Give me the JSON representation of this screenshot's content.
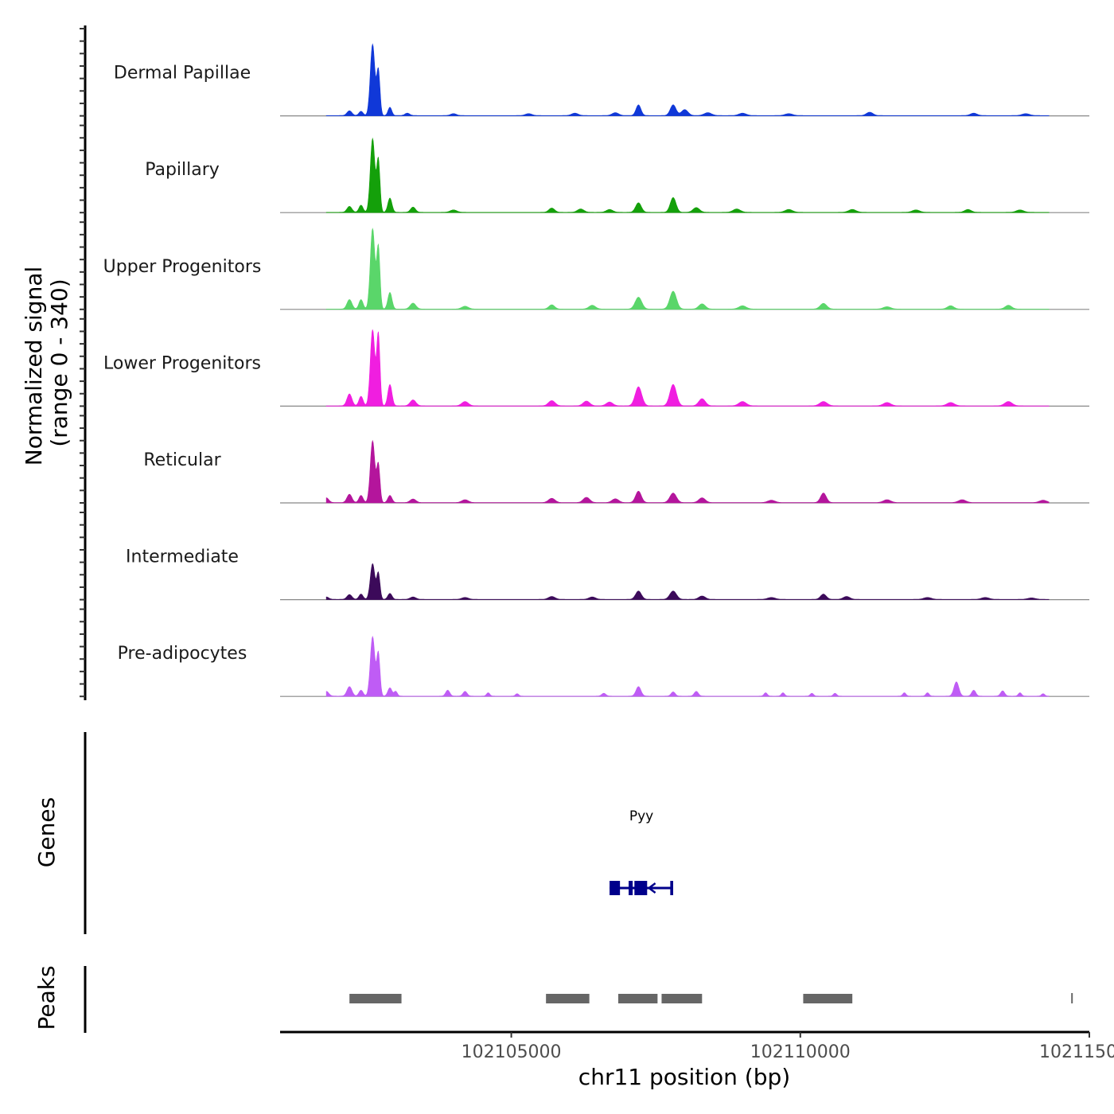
{
  "chart_data": {
    "type": "area",
    "title": "",
    "ylabel": "Normalized signal\n(range 0 - 340)",
    "ylabel_lines": [
      "Normalized signal",
      "(range 0 - 340)"
    ],
    "y_range": [
      0,
      340
    ],
    "xlabel": "chr11 position (bp)",
    "xlim": [
      102101000,
      102115000
    ],
    "x_ticks": [
      102105000,
      102110000,
      102115000
    ],
    "x_tick_labels": [
      "102105000",
      "102110000",
      "102115000"
    ],
    "series": [
      {
        "name": "Dermal Papillae",
        "color": "#1038d8",
        "peaks": [
          [
            102102200,
            20,
            60
          ],
          [
            102102400,
            18,
            50
          ],
          [
            102102600,
            300,
            55
          ],
          [
            102102700,
            190,
            40
          ],
          [
            102102900,
            35,
            45
          ],
          [
            102103200,
            10,
            60
          ],
          [
            102104000,
            8,
            70
          ],
          [
            102105300,
            8,
            80
          ],
          [
            102106100,
            10,
            80
          ],
          [
            102106800,
            12,
            80
          ],
          [
            102107200,
            45,
            60
          ],
          [
            102107800,
            45,
            70
          ],
          [
            102108000,
            25,
            80
          ],
          [
            102108400,
            12,
            90
          ],
          [
            102109000,
            10,
            90
          ],
          [
            102109800,
            8,
            90
          ],
          [
            102111200,
            14,
            80
          ],
          [
            102113000,
            10,
            80
          ],
          [
            102113900,
            8,
            90
          ]
        ]
      },
      {
        "name": "Papillary",
        "color": "#14a00a",
        "peaks": [
          [
            102102200,
            25,
            60
          ],
          [
            102102400,
            30,
            50
          ],
          [
            102102600,
            310,
            55
          ],
          [
            102102700,
            220,
            40
          ],
          [
            102102900,
            60,
            50
          ],
          [
            102103300,
            22,
            60
          ],
          [
            102104000,
            10,
            80
          ],
          [
            102105700,
            18,
            70
          ],
          [
            102106200,
            14,
            80
          ],
          [
            102106700,
            12,
            80
          ],
          [
            102107200,
            40,
            70
          ],
          [
            102107800,
            62,
            70
          ],
          [
            102108200,
            20,
            80
          ],
          [
            102108900,
            14,
            90
          ],
          [
            102109800,
            12,
            90
          ],
          [
            102110900,
            12,
            90
          ],
          [
            102112000,
            10,
            90
          ],
          [
            102112900,
            12,
            80
          ],
          [
            102113800,
            10,
            90
          ]
        ]
      },
      {
        "name": "Upper Progenitors",
        "color": "#5ad66a",
        "peaks": [
          [
            102102200,
            40,
            60
          ],
          [
            102102400,
            40,
            50
          ],
          [
            102102600,
            340,
            55
          ],
          [
            102102700,
            260,
            40
          ],
          [
            102102900,
            70,
            50
          ],
          [
            102103300,
            25,
            70
          ],
          [
            102104200,
            12,
            80
          ],
          [
            102105700,
            18,
            70
          ],
          [
            102106400,
            16,
            80
          ],
          [
            102107200,
            50,
            80
          ],
          [
            102107800,
            75,
            80
          ],
          [
            102108300,
            22,
            80
          ],
          [
            102109000,
            14,
            90
          ],
          [
            102110400,
            24,
            80
          ],
          [
            102111500,
            10,
            90
          ],
          [
            102112600,
            14,
            80
          ],
          [
            102113600,
            16,
            80
          ]
        ]
      },
      {
        "name": "Lower Progenitors",
        "color": "#f01ee0",
        "peaks": [
          [
            102102200,
            50,
            60
          ],
          [
            102102400,
            40,
            50
          ],
          [
            102102600,
            320,
            55
          ],
          [
            102102700,
            300,
            40
          ],
          [
            102102900,
            90,
            50
          ],
          [
            102103300,
            25,
            70
          ],
          [
            102104200,
            18,
            80
          ],
          [
            102105700,
            22,
            80
          ],
          [
            102106300,
            20,
            80
          ],
          [
            102106700,
            16,
            80
          ],
          [
            102107200,
            80,
            80
          ],
          [
            102107800,
            90,
            80
          ],
          [
            102108300,
            30,
            80
          ],
          [
            102109000,
            18,
            90
          ],
          [
            102110400,
            18,
            90
          ],
          [
            102111500,
            14,
            90
          ],
          [
            102112600,
            14,
            90
          ],
          [
            102113600,
            18,
            90
          ]
        ]
      },
      {
        "name": "Reticular",
        "color": "#b4159c",
        "peaks": [
          [
            102101800,
            20,
            60
          ],
          [
            102102200,
            35,
            60
          ],
          [
            102102400,
            30,
            50
          ],
          [
            102102600,
            260,
            55
          ],
          [
            102102700,
            160,
            40
          ],
          [
            102102900,
            30,
            50
          ],
          [
            102103300,
            15,
            70
          ],
          [
            102104200,
            12,
            80
          ],
          [
            102105700,
            18,
            80
          ],
          [
            102106300,
            22,
            80
          ],
          [
            102106800,
            16,
            80
          ],
          [
            102107200,
            48,
            70
          ],
          [
            102107800,
            40,
            80
          ],
          [
            102108300,
            20,
            80
          ],
          [
            102109500,
            10,
            90
          ],
          [
            102110400,
            40,
            70
          ],
          [
            102111500,
            12,
            90
          ],
          [
            102112800,
            12,
            90
          ],
          [
            102114200,
            10,
            90
          ]
        ]
      },
      {
        "name": "Intermediate",
        "color": "#3c0a5a",
        "peaks": [
          [
            102101800,
            10,
            60
          ],
          [
            102102200,
            20,
            60
          ],
          [
            102102400,
            22,
            50
          ],
          [
            102102600,
            150,
            55
          ],
          [
            102102700,
            110,
            40
          ],
          [
            102102900,
            25,
            50
          ],
          [
            102103300,
            10,
            70
          ],
          [
            102104200,
            8,
            80
          ],
          [
            102105700,
            12,
            80
          ],
          [
            102106400,
            10,
            80
          ],
          [
            102107200,
            35,
            70
          ],
          [
            102107800,
            35,
            80
          ],
          [
            102108300,
            14,
            80
          ],
          [
            102109500,
            8,
            90
          ],
          [
            102110400,
            22,
            70
          ],
          [
            102110800,
            12,
            80
          ],
          [
            102112200,
            8,
            90
          ],
          [
            102113200,
            8,
            90
          ],
          [
            102114000,
            6,
            90
          ]
        ]
      },
      {
        "name": "Pre-adipocytes",
        "color": "#bf5cf5",
        "peaks": [
          [
            102101800,
            20,
            60
          ],
          [
            102102200,
            40,
            60
          ],
          [
            102102400,
            25,
            50
          ],
          [
            102102600,
            250,
            55
          ],
          [
            102102700,
            180,
            40
          ],
          [
            102102900,
            35,
            50
          ],
          [
            102103000,
            20,
            40
          ],
          [
            102103900,
            25,
            50
          ],
          [
            102104200,
            20,
            50
          ],
          [
            102104600,
            14,
            40
          ],
          [
            102105100,
            10,
            40
          ],
          [
            102106600,
            12,
            50
          ],
          [
            102107200,
            40,
            60
          ],
          [
            102107800,
            18,
            50
          ],
          [
            102108200,
            20,
            50
          ],
          [
            102109400,
            14,
            40
          ],
          [
            102109700,
            14,
            40
          ],
          [
            102110200,
            12,
            40
          ],
          [
            102110600,
            12,
            40
          ],
          [
            102111800,
            14,
            40
          ],
          [
            102112200,
            14,
            40
          ],
          [
            102112700,
            60,
            60
          ],
          [
            102113000,
            25,
            50
          ],
          [
            102113500,
            22,
            50
          ],
          [
            102113800,
            14,
            40
          ],
          [
            102114200,
            10,
            40
          ]
        ]
      }
    ],
    "gene_panel": {
      "label": "Genes",
      "genes": [
        {
          "name": "Pyy",
          "start": 102106700,
          "end": 102107800,
          "strand": "-",
          "color": "#00008b",
          "exons": [
            [
              102106700,
              102106880
            ],
            [
              102107030,
              102107100
            ],
            [
              102107130,
              102107350
            ],
            [
              102107750,
              102107800
            ]
          ]
        }
      ]
    },
    "peaks_panel": {
      "label": "Peaks",
      "color": "#666666",
      "regions": [
        [
          102102200,
          102103100
        ],
        [
          102105600,
          102106350
        ],
        [
          102106850,
          102107530
        ],
        [
          102107600,
          102108300
        ],
        [
          102110050,
          102110900
        ],
        [
          102114700,
          102114730
        ]
      ]
    }
  }
}
